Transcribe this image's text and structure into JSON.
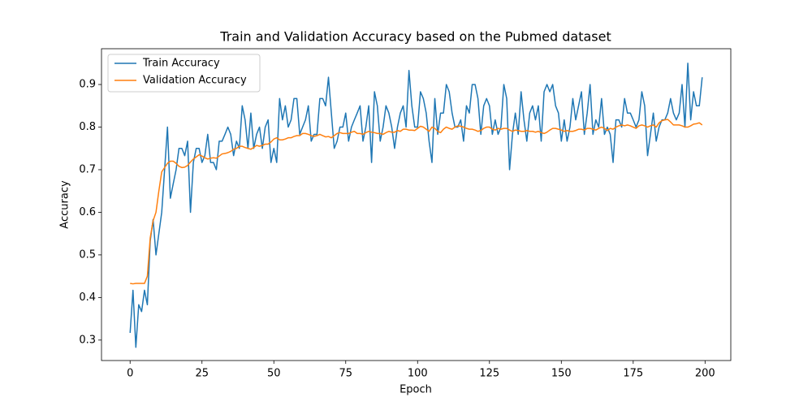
{
  "chart_data": {
    "type": "line",
    "title": "Train and Validation Accuracy based on the Pubmed dataset",
    "xlabel": "Epoch",
    "ylabel": "Accuracy",
    "legend": "upper left",
    "xlim": [
      -9.95,
      208.95
    ],
    "ylim": [
      0.252,
      0.984
    ],
    "xticks": [
      0,
      25,
      50,
      75,
      100,
      125,
      150,
      175,
      200
    ],
    "yticks": [
      0.3,
      0.4,
      0.5,
      0.6,
      0.7,
      0.8,
      0.9
    ],
    "x": [
      0,
      1,
      2,
      3,
      4,
      5,
      6,
      7,
      8,
      9,
      10,
      11,
      12,
      13,
      14,
      15,
      16,
      17,
      18,
      19,
      20,
      21,
      22,
      23,
      24,
      25,
      26,
      27,
      28,
      29,
      30,
      31,
      32,
      33,
      34,
      35,
      36,
      37,
      38,
      39,
      40,
      41,
      42,
      43,
      44,
      45,
      46,
      47,
      48,
      49,
      50,
      51,
      52,
      53,
      54,
      55,
      56,
      57,
      58,
      59,
      60,
      61,
      62,
      63,
      64,
      65,
      66,
      67,
      68,
      69,
      70,
      71,
      72,
      73,
      74,
      75,
      76,
      77,
      78,
      79,
      80,
      81,
      82,
      83,
      84,
      85,
      86,
      87,
      88,
      89,
      90,
      91,
      92,
      93,
      94,
      95,
      96,
      97,
      98,
      99,
      100,
      101,
      102,
      103,
      104,
      105,
      106,
      107,
      108,
      109,
      110,
      111,
      112,
      113,
      114,
      115,
      116,
      117,
      118,
      119,
      120,
      121,
      122,
      123,
      124,
      125,
      126,
      127,
      128,
      129,
      130,
      131,
      132,
      133,
      134,
      135,
      136,
      137,
      138,
      139,
      140,
      141,
      142,
      143,
      144,
      145,
      146,
      147,
      148,
      149,
      150,
      151,
      152,
      153,
      154,
      155,
      156,
      157,
      158,
      159,
      160,
      161,
      162,
      163,
      164,
      165,
      166,
      167,
      168,
      169,
      170,
      171,
      172,
      173,
      174,
      175,
      176,
      177,
      178,
      179,
      180,
      181,
      182,
      183,
      184,
      185,
      186,
      187,
      188,
      189,
      190,
      191,
      192,
      193,
      194,
      195,
      196,
      197,
      198,
      199
    ],
    "series": [
      {
        "name": "Train Accuracy",
        "color": "#1f77b4",
        "values": [
          0.317,
          0.417,
          0.283,
          0.383,
          0.367,
          0.417,
          0.383,
          0.533,
          0.583,
          0.5,
          0.55,
          0.6,
          0.7,
          0.8,
          0.633,
          0.667,
          0.7,
          0.75,
          0.75,
          0.733,
          0.767,
          0.6,
          0.717,
          0.75,
          0.75,
          0.717,
          0.733,
          0.783,
          0.717,
          0.717,
          0.7,
          0.767,
          0.767,
          0.783,
          0.8,
          0.783,
          0.733,
          0.767,
          0.75,
          0.85,
          0.817,
          0.75,
          0.833,
          0.75,
          0.783,
          0.8,
          0.75,
          0.8,
          0.817,
          0.717,
          0.75,
          0.717,
          0.867,
          0.817,
          0.85,
          0.8,
          0.817,
          0.867,
          0.867,
          0.783,
          0.8,
          0.817,
          0.85,
          0.767,
          0.783,
          0.783,
          0.867,
          0.867,
          0.85,
          0.917,
          0.833,
          0.75,
          0.767,
          0.8,
          0.8,
          0.833,
          0.767,
          0.8,
          0.817,
          0.833,
          0.85,
          0.767,
          0.8,
          0.85,
          0.717,
          0.883,
          0.85,
          0.767,
          0.8,
          0.85,
          0.833,
          0.8,
          0.75,
          0.8,
          0.833,
          0.85,
          0.8,
          0.933,
          0.85,
          0.8,
          0.8,
          0.883,
          0.867,
          0.833,
          0.767,
          0.717,
          0.867,
          0.783,
          0.833,
          0.833,
          0.9,
          0.883,
          0.833,
          0.8,
          0.8,
          0.817,
          0.767,
          0.85,
          0.833,
          0.9,
          0.9,
          0.867,
          0.783,
          0.85,
          0.867,
          0.85,
          0.783,
          0.817,
          0.783,
          0.8,
          0.9,
          0.867,
          0.7,
          0.783,
          0.833,
          0.783,
          0.883,
          0.817,
          0.767,
          0.833,
          0.85,
          0.817,
          0.85,
          0.767,
          0.883,
          0.9,
          0.883,
          0.9,
          0.85,
          0.833,
          0.767,
          0.817,
          0.767,
          0.8,
          0.867,
          0.817,
          0.85,
          0.883,
          0.783,
          0.833,
          0.9,
          0.783,
          0.817,
          0.8,
          0.867,
          0.783,
          0.8,
          0.783,
          0.717,
          0.817,
          0.817,
          0.8,
          0.867,
          0.833,
          0.833,
          0.817,
          0.8,
          0.817,
          0.883,
          0.85,
          0.733,
          0.783,
          0.833,
          0.767,
          0.8,
          0.817,
          0.817,
          0.833,
          0.867,
          0.833,
          0.817,
          0.833,
          0.9,
          0.8,
          0.95,
          0.817,
          0.883,
          0.85,
          0.85,
          0.917
        ]
      },
      {
        "name": "Validation Accuracy",
        "color": "#ff7f0e",
        "values": [
          0.433,
          0.432,
          0.433,
          0.433,
          0.433,
          0.433,
          0.45,
          0.54,
          0.58,
          0.6,
          0.65,
          0.695,
          0.705,
          0.715,
          0.72,
          0.72,
          0.715,
          0.708,
          0.705,
          0.706,
          0.71,
          0.718,
          0.725,
          0.73,
          0.735,
          0.732,
          0.728,
          0.725,
          0.727,
          0.728,
          0.727,
          0.732,
          0.737,
          0.738,
          0.74,
          0.743,
          0.748,
          0.75,
          0.755,
          0.755,
          0.752,
          0.75,
          0.748,
          0.752,
          0.757,
          0.755,
          0.757,
          0.76,
          0.76,
          0.765,
          0.772,
          0.775,
          0.77,
          0.77,
          0.772,
          0.775,
          0.775,
          0.778,
          0.78,
          0.78,
          0.785,
          0.785,
          0.783,
          0.78,
          0.778,
          0.78,
          0.783,
          0.78,
          0.777,
          0.778,
          0.775,
          0.78,
          0.785,
          0.787,
          0.785,
          0.785,
          0.785,
          0.788,
          0.79,
          0.785,
          0.785,
          0.783,
          0.787,
          0.79,
          0.788,
          0.787,
          0.785,
          0.785,
          0.783,
          0.787,
          0.79,
          0.788,
          0.788,
          0.792,
          0.79,
          0.795,
          0.795,
          0.793,
          0.793,
          0.792,
          0.797,
          0.802,
          0.8,
          0.795,
          0.79,
          0.8,
          0.797,
          0.79,
          0.787,
          0.795,
          0.8,
          0.797,
          0.795,
          0.8,
          0.803,
          0.802,
          0.8,
          0.797,
          0.795,
          0.795,
          0.793,
          0.79,
          0.792,
          0.797,
          0.8,
          0.8,
          0.795,
          0.793,
          0.797,
          0.795,
          0.797,
          0.797,
          0.793,
          0.79,
          0.793,
          0.792,
          0.79,
          0.79,
          0.792,
          0.79,
          0.79,
          0.788,
          0.79,
          0.787,
          0.785,
          0.788,
          0.793,
          0.797,
          0.797,
          0.795,
          0.793,
          0.79,
          0.792,
          0.79,
          0.79,
          0.792,
          0.795,
          0.795,
          0.793,
          0.797,
          0.797,
          0.795,
          0.793,
          0.797,
          0.8,
          0.797,
          0.792,
          0.797,
          0.795,
          0.8,
          0.803,
          0.805,
          0.803,
          0.805,
          0.803,
          0.8,
          0.797,
          0.803,
          0.805,
          0.803,
          0.8,
          0.803,
          0.805,
          0.8,
          0.81,
          0.815,
          0.817,
          0.818,
          0.812,
          0.805,
          0.805,
          0.805,
          0.803,
          0.8,
          0.8,
          0.803,
          0.807,
          0.808,
          0.81,
          0.805
        ]
      }
    ]
  }
}
